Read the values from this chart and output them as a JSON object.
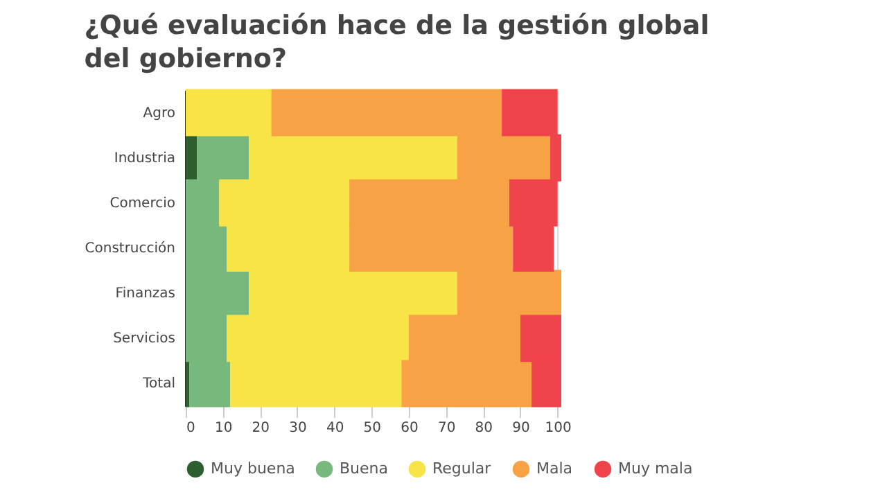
{
  "chart_data": {
    "type": "bar",
    "orientation": "horizontal",
    "stacked": true,
    "title": "¿Qué evaluación hace de la gestión global del gobierno?",
    "categories": [
      "Agro",
      "Industria",
      "Comercio",
      "Construcción",
      "Finanzas",
      "Servicios",
      "Total"
    ],
    "series": [
      {
        "name": "Muy buena",
        "color": "#2d5e30",
        "values": [
          0,
          3,
          0,
          0,
          0,
          0,
          1
        ]
      },
      {
        "name": "Buena",
        "color": "#77b97c",
        "values": [
          0,
          14,
          9,
          11,
          17,
          11,
          11
        ]
      },
      {
        "name": "Regular",
        "color": "#f8e446",
        "values": [
          23,
          56,
          35,
          33,
          56,
          49,
          46
        ]
      },
      {
        "name": "Mala",
        "color": "#f6a245",
        "values": [
          62,
          25,
          43,
          44,
          28,
          30,
          35
        ]
      },
      {
        "name": "Muy mala",
        "color": "#f1434b",
        "values": [
          15,
          3,
          13,
          11,
          null,
          11,
          8
        ]
      }
    ],
    "xlim": [
      0,
      101
    ],
    "xticks": [
      0,
      10,
      20,
      30,
      40,
      50,
      60,
      70,
      80,
      90,
      100
    ],
    "grid": "x",
    "legend": "bottom"
  }
}
